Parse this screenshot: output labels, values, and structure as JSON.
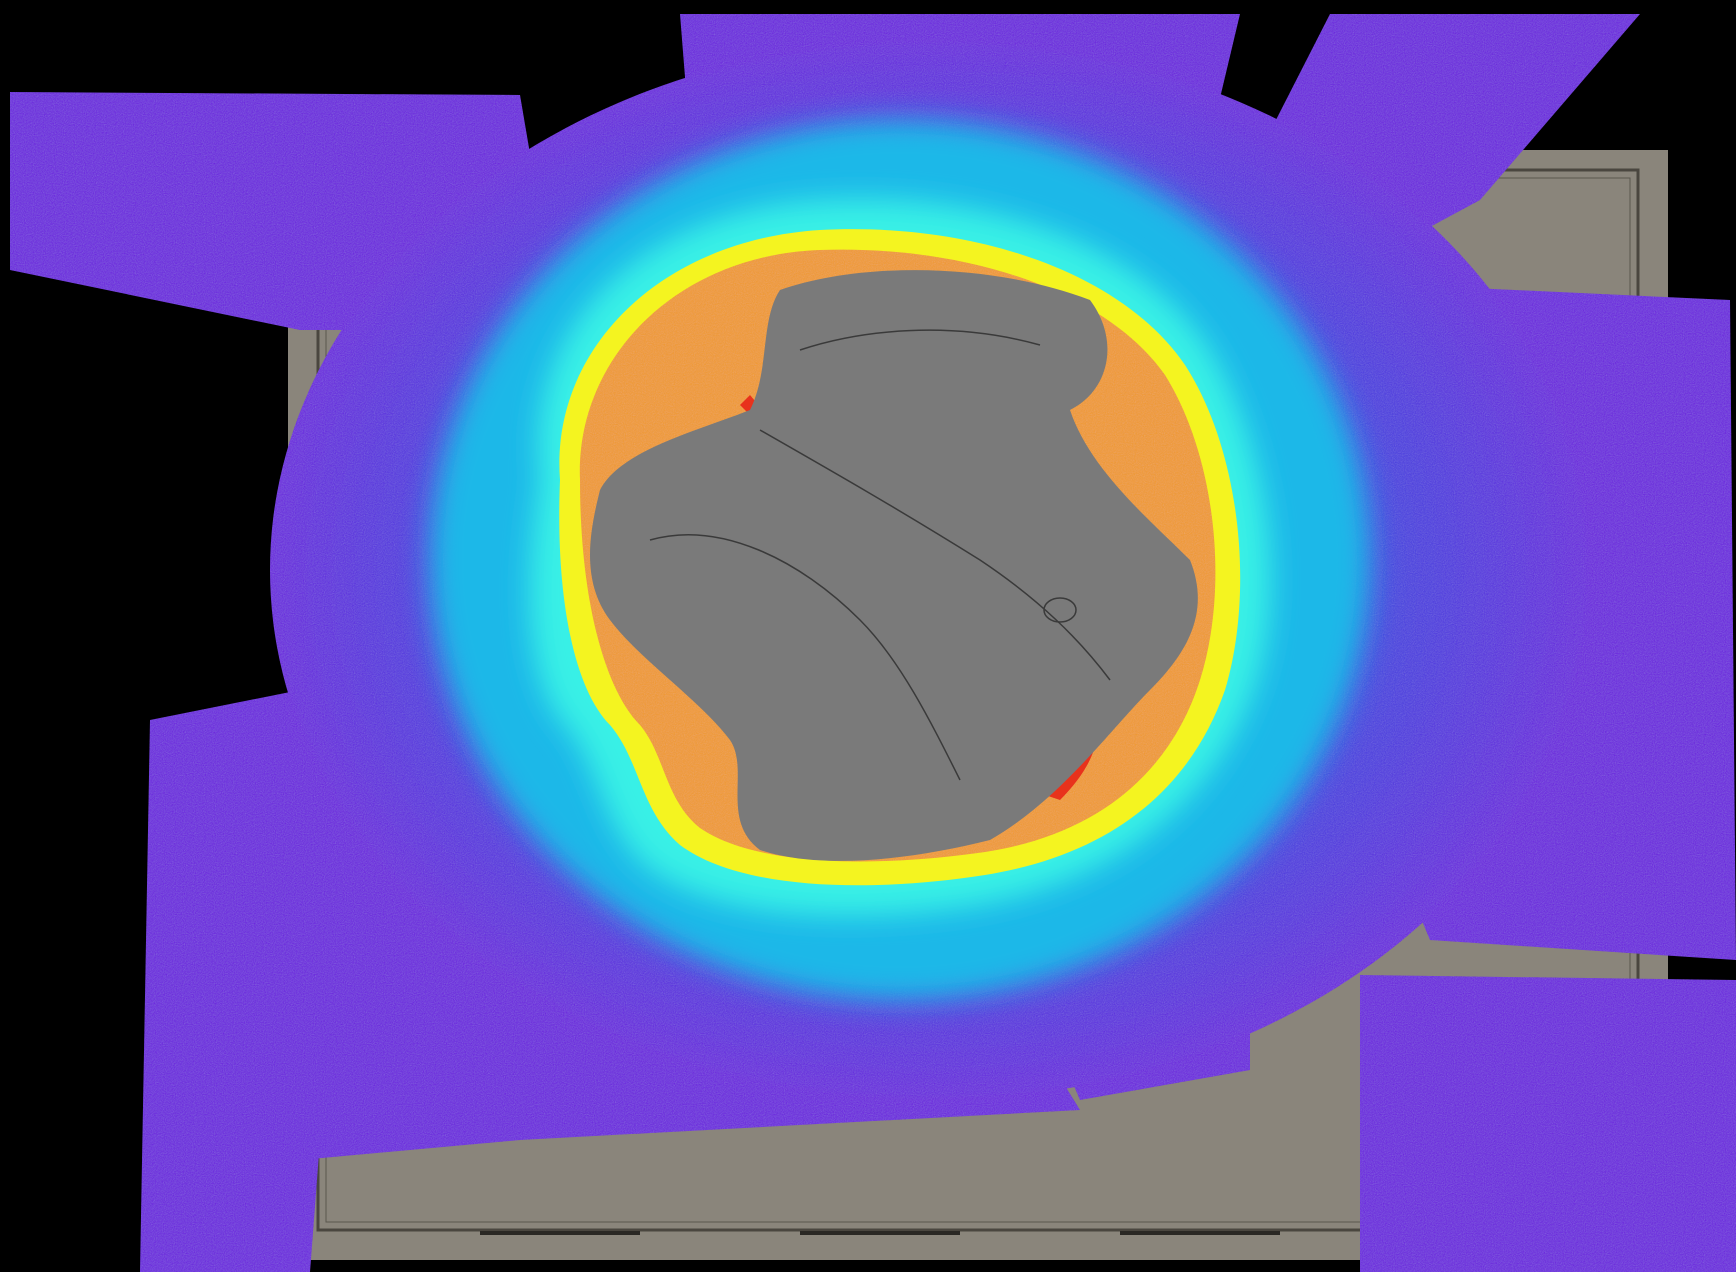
{
  "map": {
    "kind": "shaded-relief bathymetry draped over a historical chart",
    "colors": {
      "background": "#000000",
      "chart_paper": "#8a857b",
      "island_land": "#7a7a7a",
      "deep": "#6a1fe0",
      "mid_deep": "#2d4be0",
      "mid": "#1fb8e8",
      "shallow_cyan": "#38f0e6",
      "shallow_yellow": "#f4f420",
      "shallow_orange": "#f29a2a",
      "shallowest_red": "#e8321c"
    },
    "depth_gradient": [
      "deep",
      "mid_deep",
      "mid",
      "shallow_cyan",
      "shallow_yellow",
      "shallow_orange",
      "shallowest_red"
    ]
  }
}
